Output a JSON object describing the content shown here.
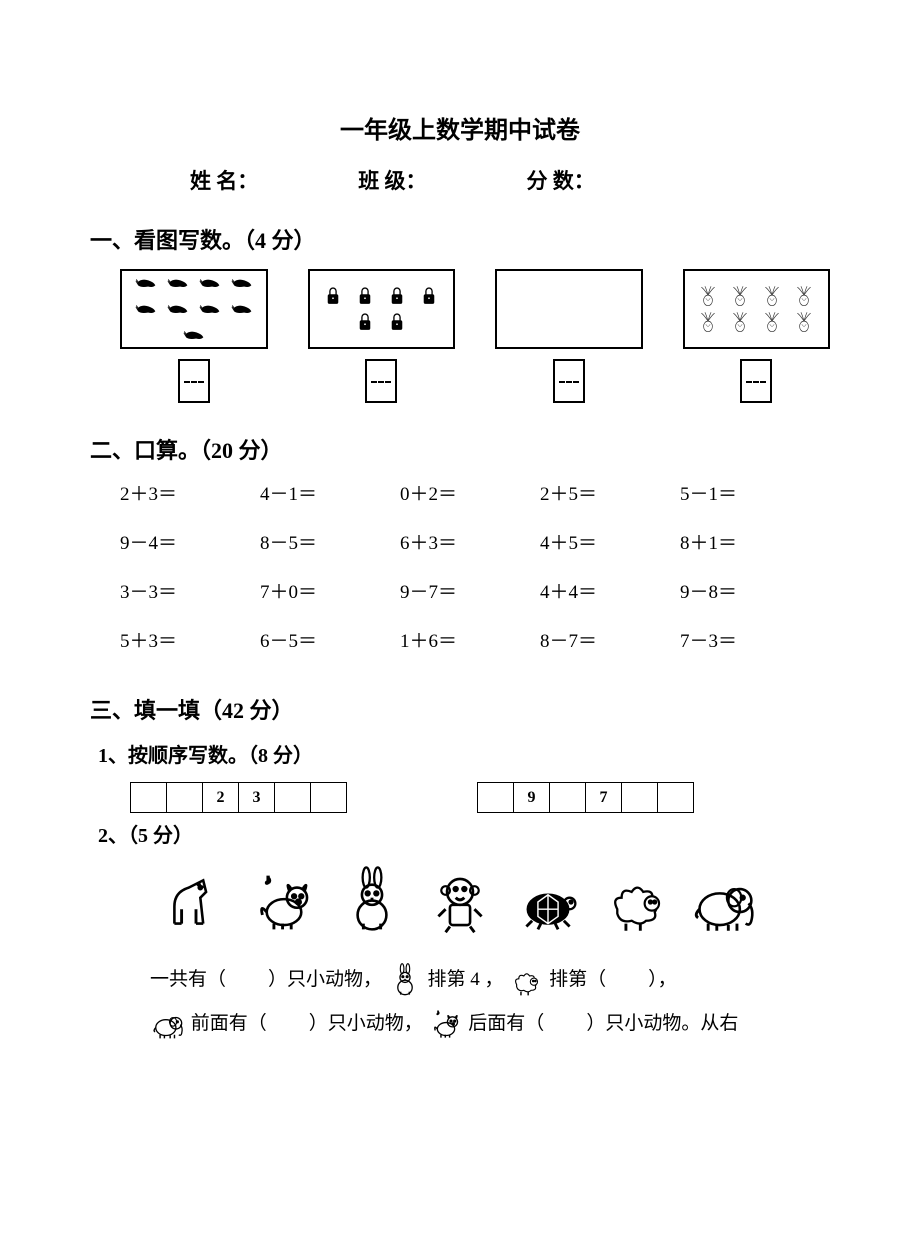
{
  "title": "一年级上数学期中试卷",
  "info": {
    "name_label": "姓  名：",
    "class_label": "班  级：",
    "score_label": "分  数："
  },
  "section1": {
    "heading": "一、看图写数。（4 分）",
    "boxes": [
      {
        "type": "shrimp",
        "count": 9
      },
      {
        "type": "lock",
        "count": 6
      },
      {
        "type": "empty",
        "count": 0
      },
      {
        "type": "cabbage",
        "count": 8
      }
    ]
  },
  "section2": {
    "heading": "二、口算。（20 分）",
    "rows": [
      [
        "2＋3＝",
        "4－1＝",
        "0＋2＝",
        "2＋5＝",
        "5－1＝"
      ],
      [
        "9－4＝",
        "8－5＝",
        "6＋3＝",
        "4＋5＝",
        "8＋1＝"
      ],
      [
        "3－3＝",
        "7＋0＝",
        "9－7＝",
        "4＋4＝",
        "9－8＝"
      ],
      [
        "5＋3＝",
        "6－5＝",
        "1＋6＝",
        "8－7＝",
        "7－3＝"
      ]
    ]
  },
  "section3": {
    "heading": "三、填一填（42 分）",
    "q1": {
      "heading": "1、按顺序写数。（8 分）",
      "seqA": [
        "",
        "",
        "2",
        "3",
        "",
        ""
      ],
      "seqB": [
        "",
        "9",
        "",
        "7",
        "",
        ""
      ]
    },
    "q2": {
      "heading": "2、（5 分）",
      "animals": [
        "horse",
        "dog",
        "rabbit",
        "monkey",
        "turtle",
        "sheep",
        "elephant"
      ],
      "line1_a": "一共有（",
      "line1_b": "）只小动物，",
      "line1_c": " 排第 4 ，",
      "line1_d": " 排第（",
      "line1_e": "），",
      "line2_a": " 前面有（",
      "line2_b": "）只小动物，",
      "line2_c": " 后面有（",
      "line2_d": "）只小动物。从右"
    }
  },
  "colors": {
    "text": "#000000",
    "bg": "#ffffff"
  }
}
